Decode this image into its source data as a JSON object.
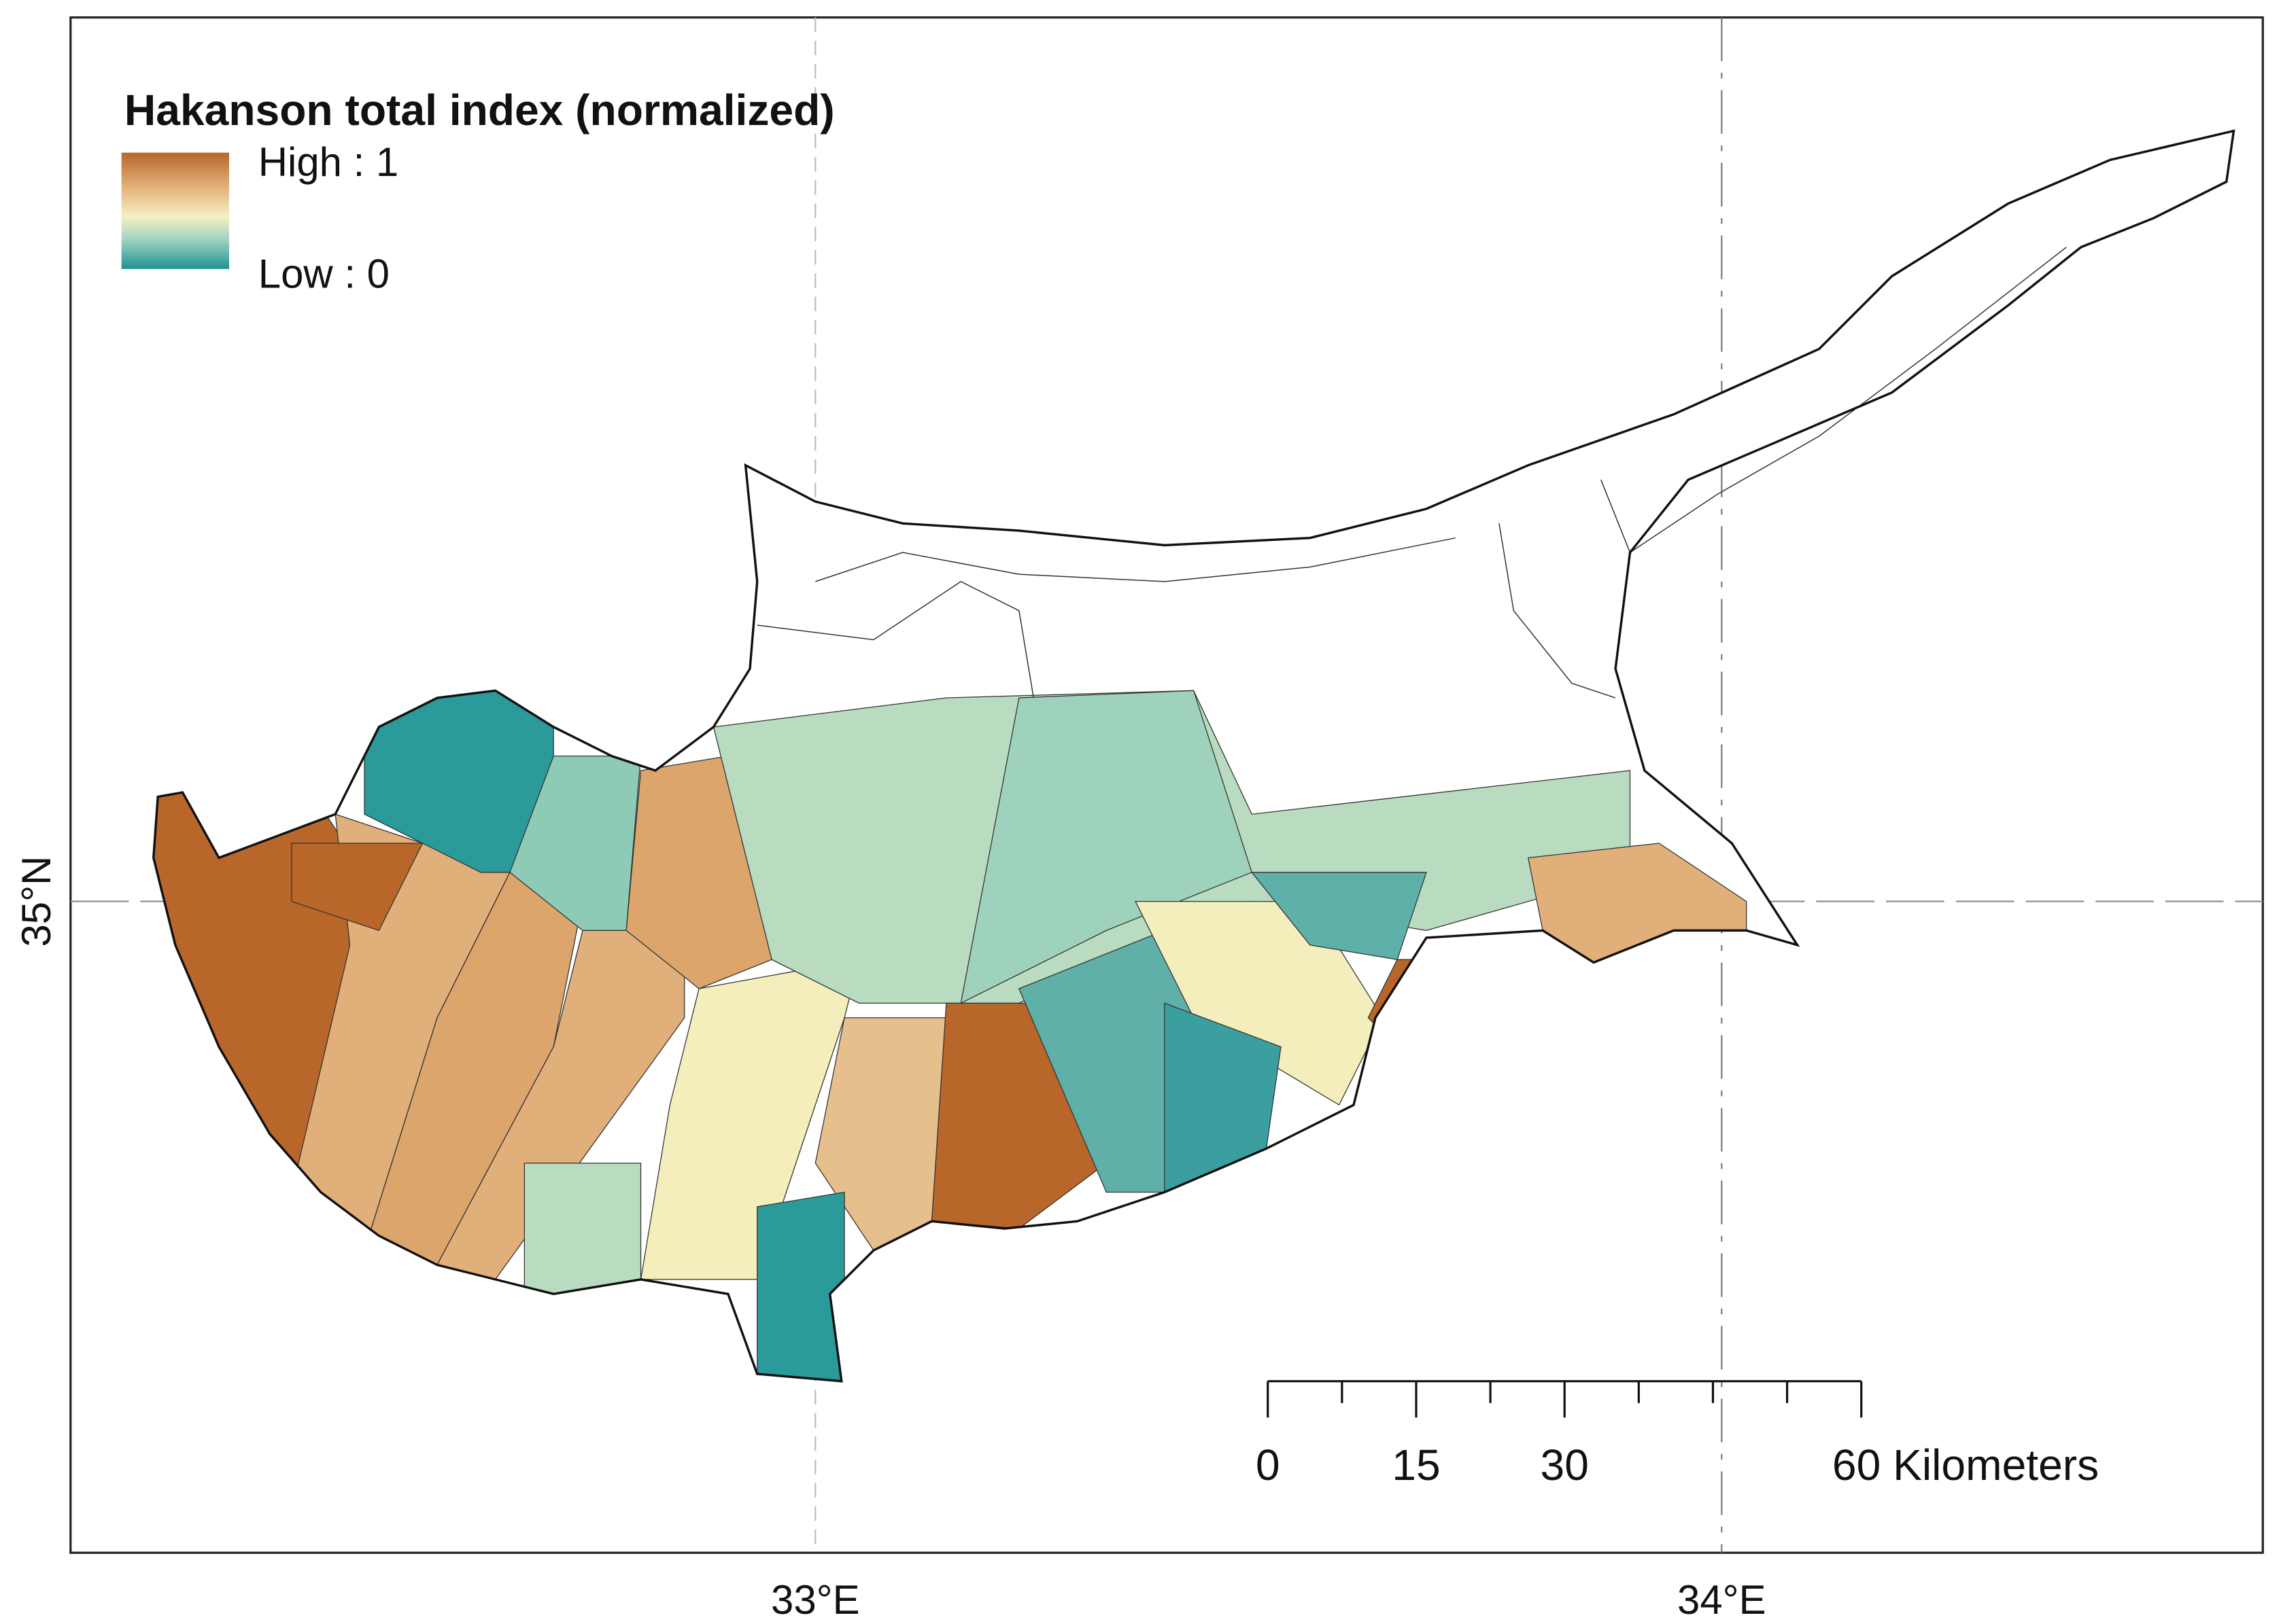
{
  "legend": {
    "title": "Hakanson total index (normalized)",
    "high_label": "High : 1",
    "low_label": "Low : 0"
  },
  "axes": {
    "lat_label": "35°N",
    "lon_labels": [
      "33°E",
      "34°E"
    ]
  },
  "scale_bar": {
    "labels": [
      "0",
      "15",
      "30",
      "60 Kilometers"
    ]
  }
}
